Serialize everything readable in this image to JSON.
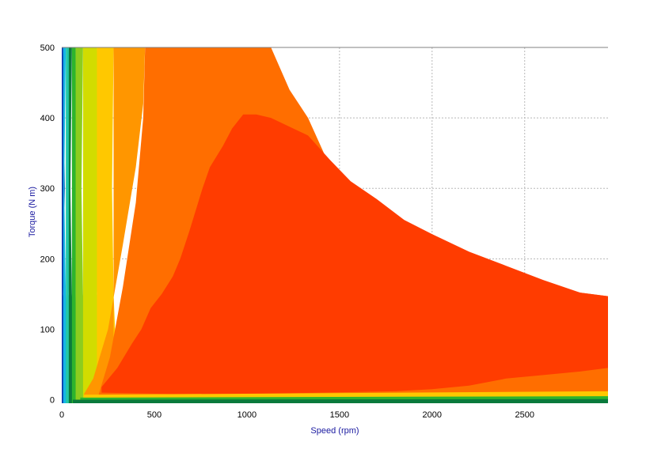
{
  "chart_data": {
    "type": "heatmap",
    "subtype": "filled-contour",
    "title": "",
    "xlabel": "Speed (rpm)",
    "ylabel": "Torque (N m)",
    "xlim": [
      0,
      2950
    ],
    "ylim": [
      -5,
      500
    ],
    "x_ticks": [
      "0",
      "500",
      "1000",
      "1500",
      "2000",
      "2500"
    ],
    "y_ticks": [
      "0",
      "100",
      "200",
      "300",
      "400",
      "500"
    ],
    "grid": true,
    "legend": "none",
    "colors": {
      "axis_label": "#1a1aa0",
      "grid": "#b8b8b8",
      "contour_levels": [
        "#0b3fb0",
        "#14b4e6",
        "#23c8a8",
        "#0a7a3c",
        "#2db42d",
        "#8ccd1e",
        "#d2dc00",
        "#ffc800",
        "#ff9600",
        "#ff6e00",
        "#ff3c00"
      ]
    },
    "regions": [
      {
        "level": "outermost",
        "color": "#ff6e00",
        "boundary": [
          [
            1130,
            500
          ],
          [
            1230,
            440
          ],
          [
            1330,
            400
          ],
          [
            1450,
            330
          ],
          [
            1560,
            290
          ],
          [
            1700,
            265
          ],
          [
            1850,
            240
          ],
          [
            2000,
            230
          ],
          [
            2200,
            205
          ],
          [
            2400,
            185
          ],
          [
            2600,
            165
          ],
          [
            2800,
            152
          ],
          [
            2950,
            147
          ]
        ]
      },
      {
        "level": "innermost",
        "color": "#ff3c00",
        "boundary": [
          [
            215,
            18
          ],
          [
            300,
            45
          ],
          [
            380,
            80
          ],
          [
            430,
            100
          ],
          [
            480,
            130
          ],
          [
            540,
            150
          ],
          [
            600,
            175
          ],
          [
            640,
            200
          ],
          [
            690,
            240
          ],
          [
            760,
            300
          ],
          [
            800,
            330
          ],
          [
            870,
            360
          ],
          [
            920,
            385
          ],
          [
            980,
            405
          ],
          [
            1050,
            405
          ],
          [
            1130,
            400
          ],
          [
            1250,
            385
          ],
          [
            1330,
            375
          ],
          [
            1450,
            340
          ],
          [
            1560,
            310
          ],
          [
            1700,
            285
          ],
          [
            1850,
            255
          ],
          [
            2000,
            235
          ],
          [
            2200,
            210
          ],
          [
            2400,
            190
          ],
          [
            2600,
            170
          ],
          [
            2800,
            152
          ],
          [
            2950,
            147
          ],
          [
            2950,
            45
          ],
          [
            2800,
            40
          ],
          [
            2600,
            35
          ],
          [
            2400,
            30
          ],
          [
            2200,
            20
          ],
          [
            2000,
            15
          ],
          [
            1800,
            12
          ],
          [
            1600,
            11
          ],
          [
            1400,
            10
          ],
          [
            1200,
            9
          ],
          [
            1000,
            8
          ],
          [
            800,
            8
          ],
          [
            600,
            8
          ],
          [
            400,
            9
          ],
          [
            215,
            10
          ]
        ]
      }
    ]
  }
}
